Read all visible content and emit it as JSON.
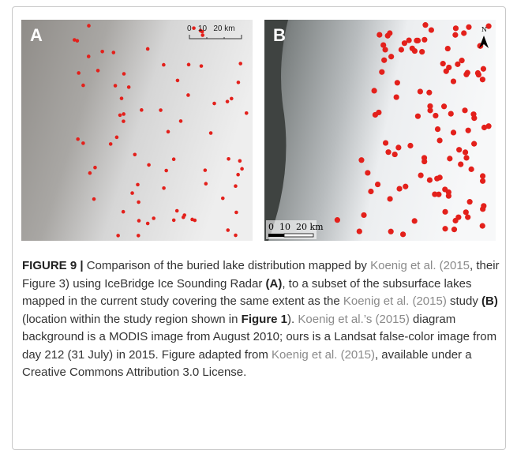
{
  "panels": [
    {
      "label": "A",
      "scale_text": "0   10   20 km"
    },
    {
      "label": "B",
      "scale_text": "0  10  20 km",
      "north": "N"
    }
  ],
  "caption": [
    "FIGURE 9 |",
    "Comparison of the buried lake distribution mapped by",
    "Koenig et al. (2015",
    ", their Figure 3) using IceBridge Ice Sounding Radar",
    "(A)",
    ", to a subset of the subsurface lakes mapped in the current study covering the same extent as the",
    "Koenig et al. (2015)",
    "study",
    "(B)",
    "(location within the study region shown in",
    "Figure 1",
    ").",
    "Koenig et al.’s (2015)",
    "diagram background is a MODIS image from August 2010; ours is a Landsat false-color image from day 212 (31 July) in 2015. Figure adapted from",
    "Koenig et al. (2015)",
    ", available under a Creative Commons Attribution 3.0 License."
  ]
}
